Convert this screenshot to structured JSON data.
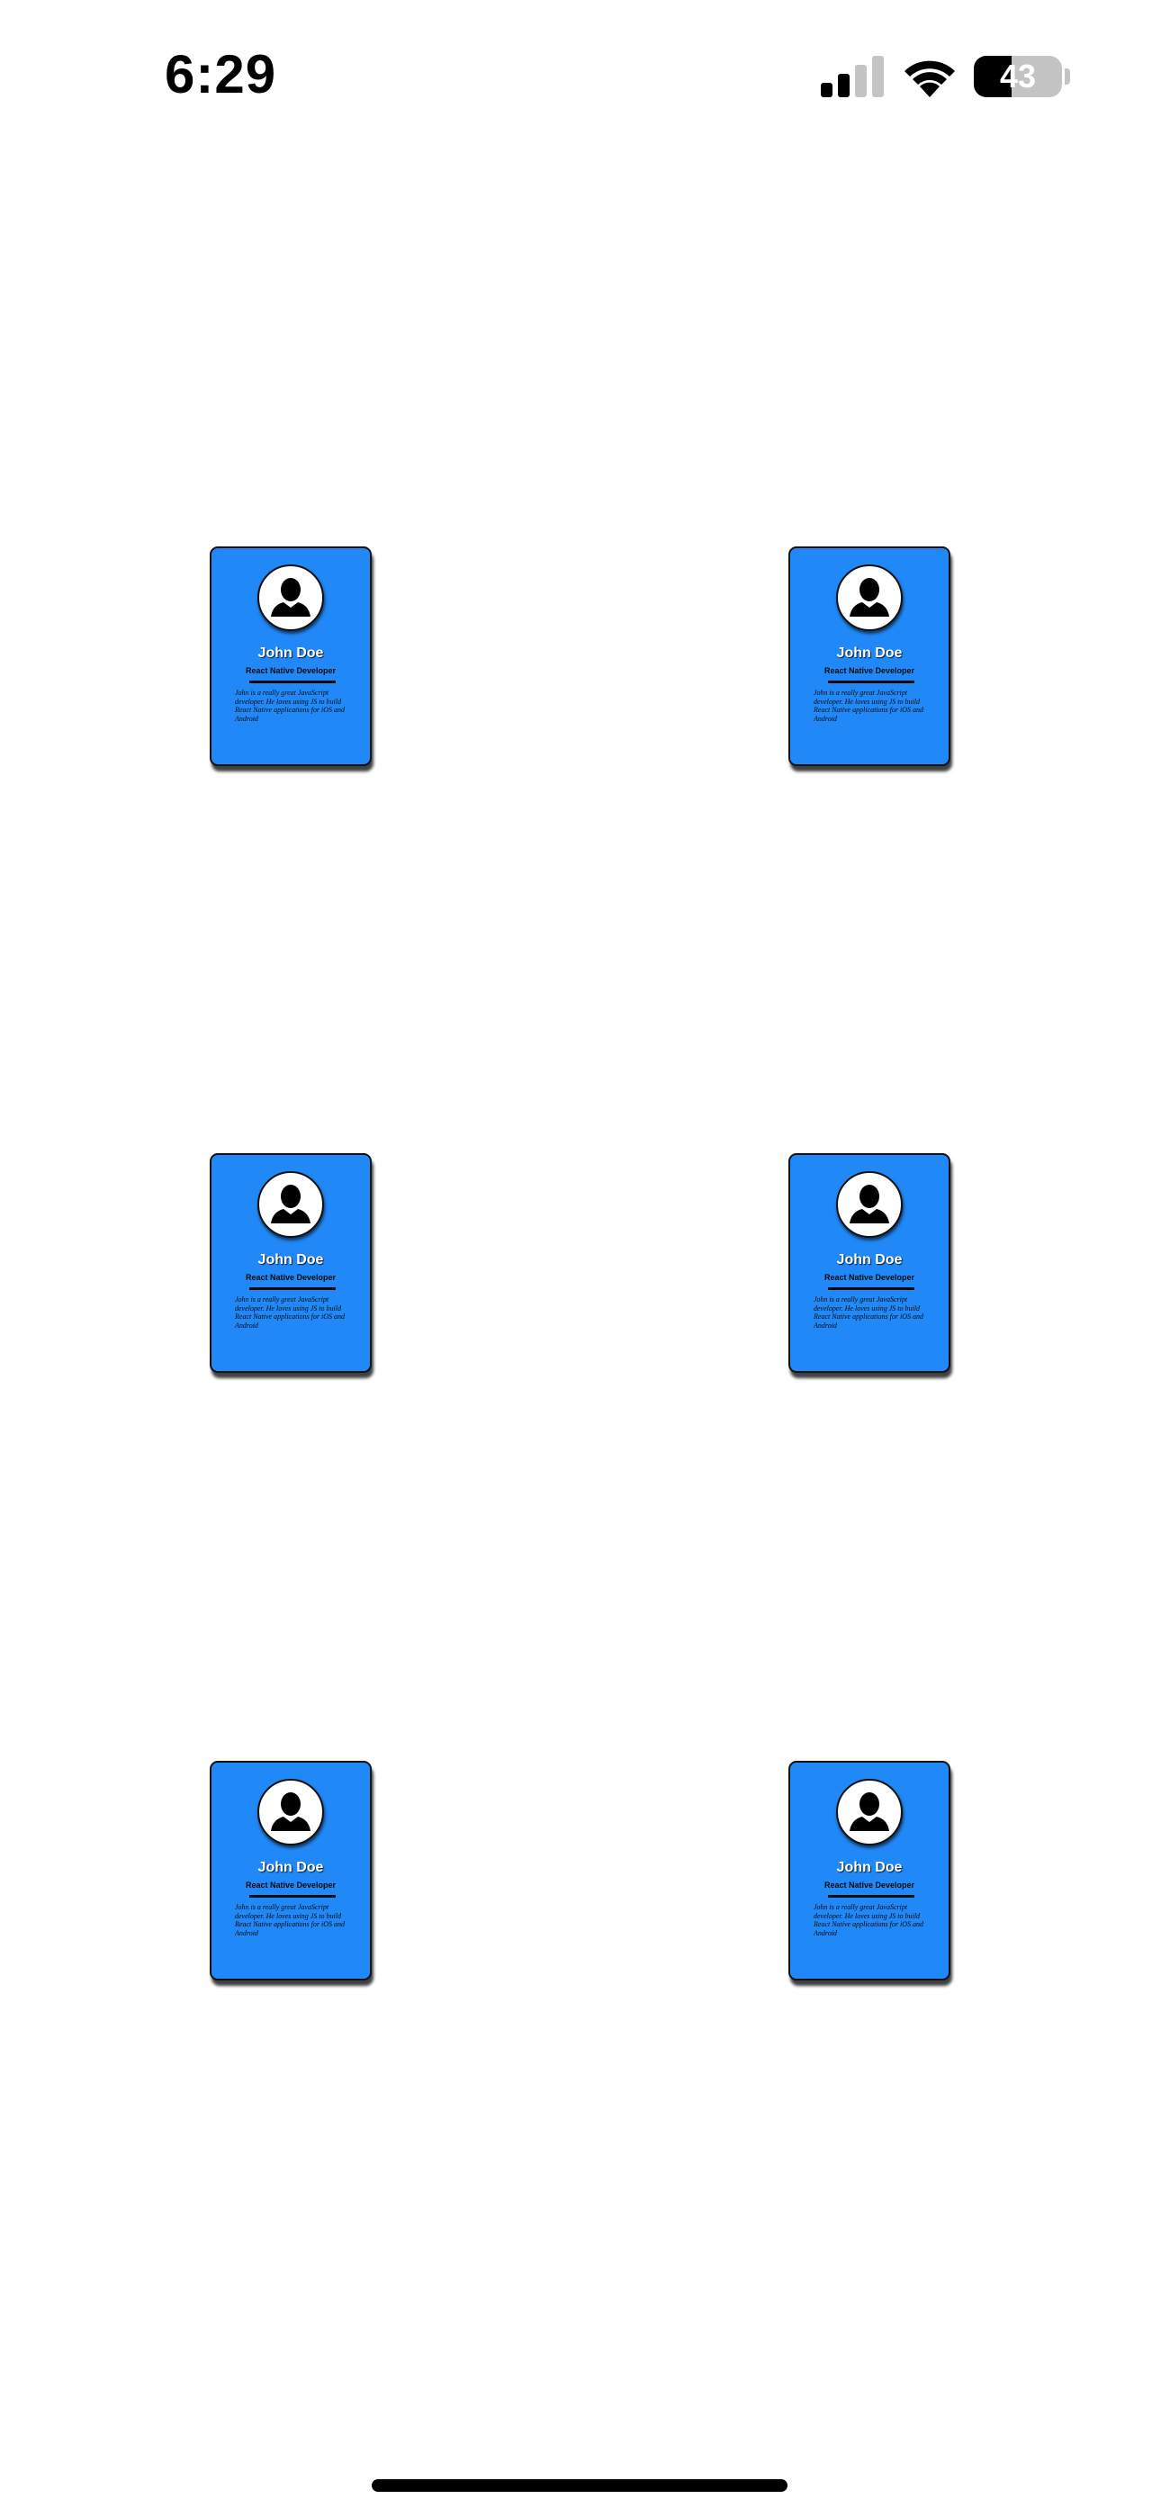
{
  "status_bar": {
    "time": "6:29",
    "battery_level": "43",
    "signal_icon": "cellular-signal-icon",
    "wifi_icon": "wifi-icon"
  },
  "colors": {
    "card_background": "#2188f7",
    "page_background": "#ffffff"
  },
  "cards": [
    {
      "name": "John Doe",
      "role": "React Native Developer",
      "bio": "John is a really great JavaScript developer. He loves using JS to build React Native applications for iOS and Android",
      "avatar_icon": "person-silhouette-icon"
    },
    {
      "name": "John Doe",
      "role": "React Native Developer",
      "bio": "John is a really great JavaScript developer. He loves using JS to build React Native applications for iOS and Android",
      "avatar_icon": "person-silhouette-icon"
    },
    {
      "name": "John Doe",
      "role": "React Native Developer",
      "bio": "John is a really great JavaScript developer. He loves using JS to build React Native applications for iOS and Android",
      "avatar_icon": "person-silhouette-icon"
    },
    {
      "name": "John Doe",
      "role": "React Native Developer",
      "bio": "John is a really great JavaScript developer. He loves using JS to build React Native applications for iOS and Android",
      "avatar_icon": "person-silhouette-icon"
    },
    {
      "name": "John Doe",
      "role": "React Native Developer",
      "bio": "John is a really great JavaScript developer. He loves using JS to build React Native applications for iOS and Android",
      "avatar_icon": "person-silhouette-icon"
    },
    {
      "name": "John Doe",
      "role": "React Native Developer",
      "bio": "John is a really great JavaScript developer. He loves using JS to build React Native applications for iOS and Android",
      "avatar_icon": "person-silhouette-icon"
    }
  ]
}
